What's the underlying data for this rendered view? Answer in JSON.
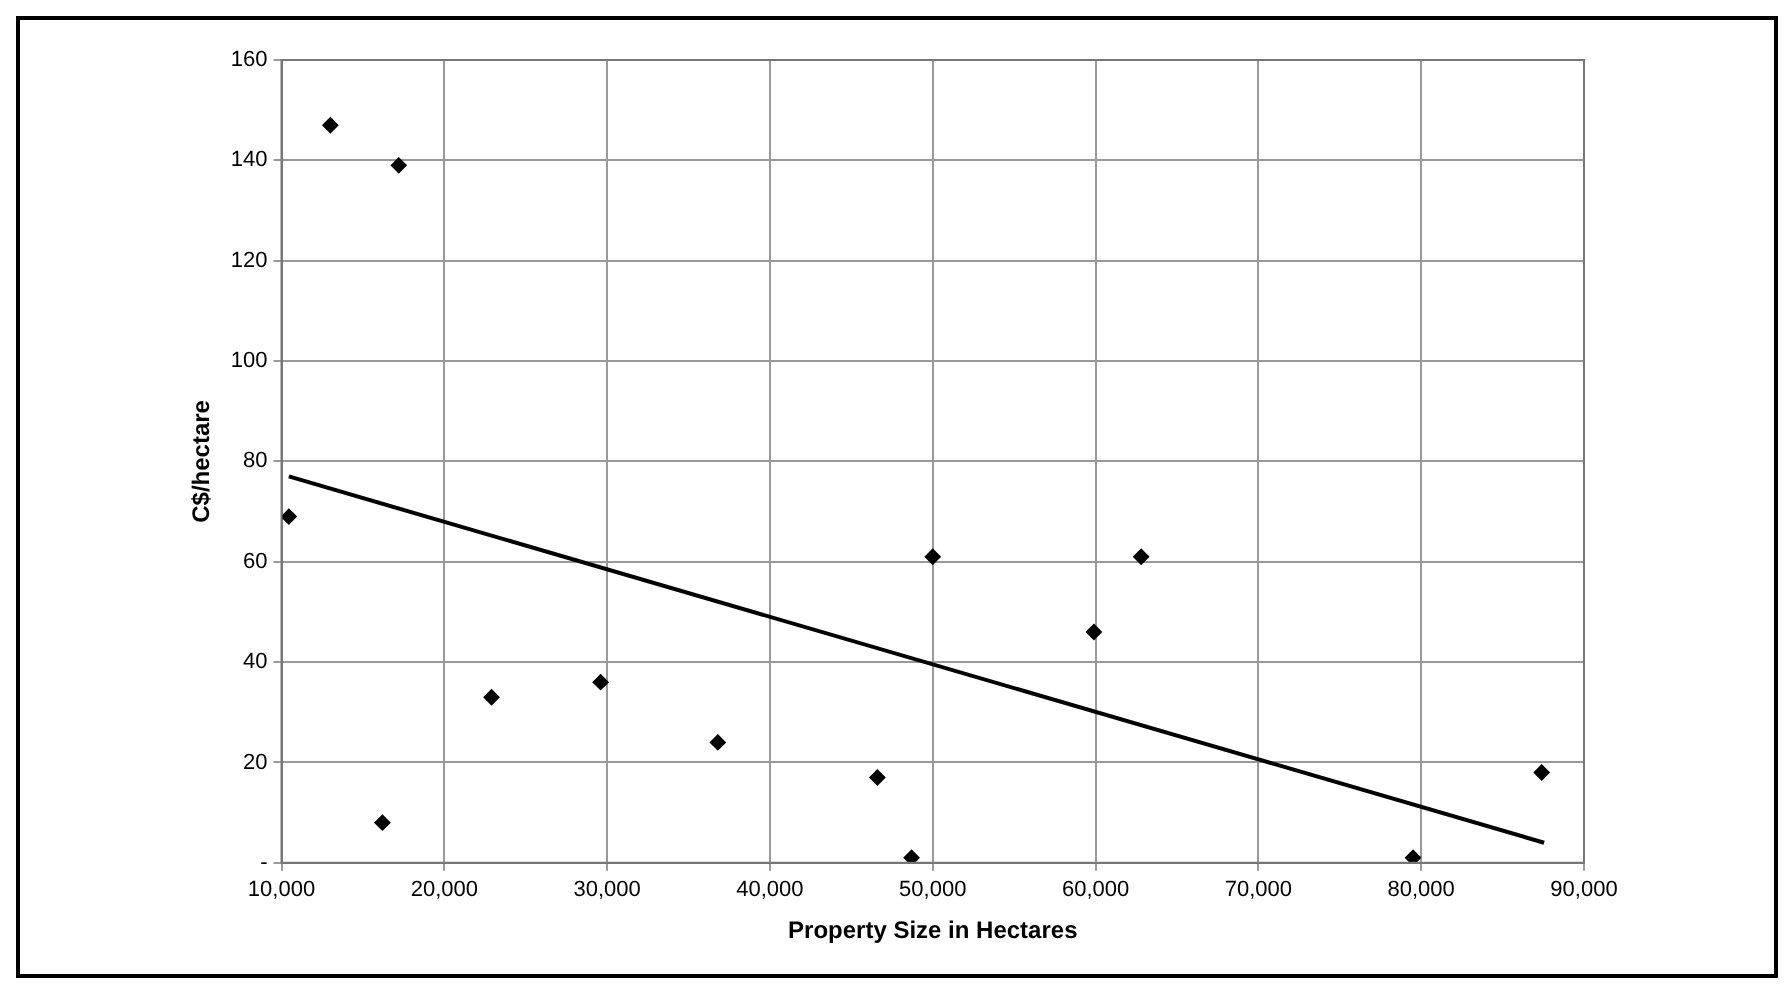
{
  "chart_data": {
    "type": "scatter",
    "xlabel": "Property Size in Hectares",
    "ylabel": "C$/hectare",
    "marker": "diamond",
    "grid": true,
    "legend": false,
    "xlim": [
      10000,
      90000
    ],
    "ylim": [
      0,
      160
    ],
    "xticks": [
      {
        "value": 10000,
        "label": "10,000"
      },
      {
        "value": 20000,
        "label": "20,000"
      },
      {
        "value": 30000,
        "label": "30,000"
      },
      {
        "value": 40000,
        "label": "40,000"
      },
      {
        "value": 50000,
        "label": "50,000"
      },
      {
        "value": 60000,
        "label": "60,000"
      },
      {
        "value": 70000,
        "label": "70,000"
      },
      {
        "value": 80000,
        "label": "80,000"
      },
      {
        "value": 90000,
        "label": "90,000"
      }
    ],
    "yticks": [
      {
        "value": 0,
        "label": "-"
      },
      20,
      40,
      60,
      80,
      100,
      120,
      140,
      160
    ],
    "series": [
      {
        "type": "scatter",
        "color": "#000000",
        "x": [
          10450,
          13000,
          17200,
          16200,
          22900,
          29600,
          36800,
          46600,
          48700,
          50000,
          59900,
          62800,
          79500,
          87400
        ],
        "values": [
          69,
          147,
          139,
          8,
          33,
          36,
          24,
          17,
          1,
          61,
          46,
          61,
          1,
          18
        ]
      },
      {
        "type": "line",
        "color": "#000000",
        "marker": "none",
        "x": [
          10450,
          87550
        ],
        "values": [
          77,
          4
        ]
      }
    ]
  }
}
